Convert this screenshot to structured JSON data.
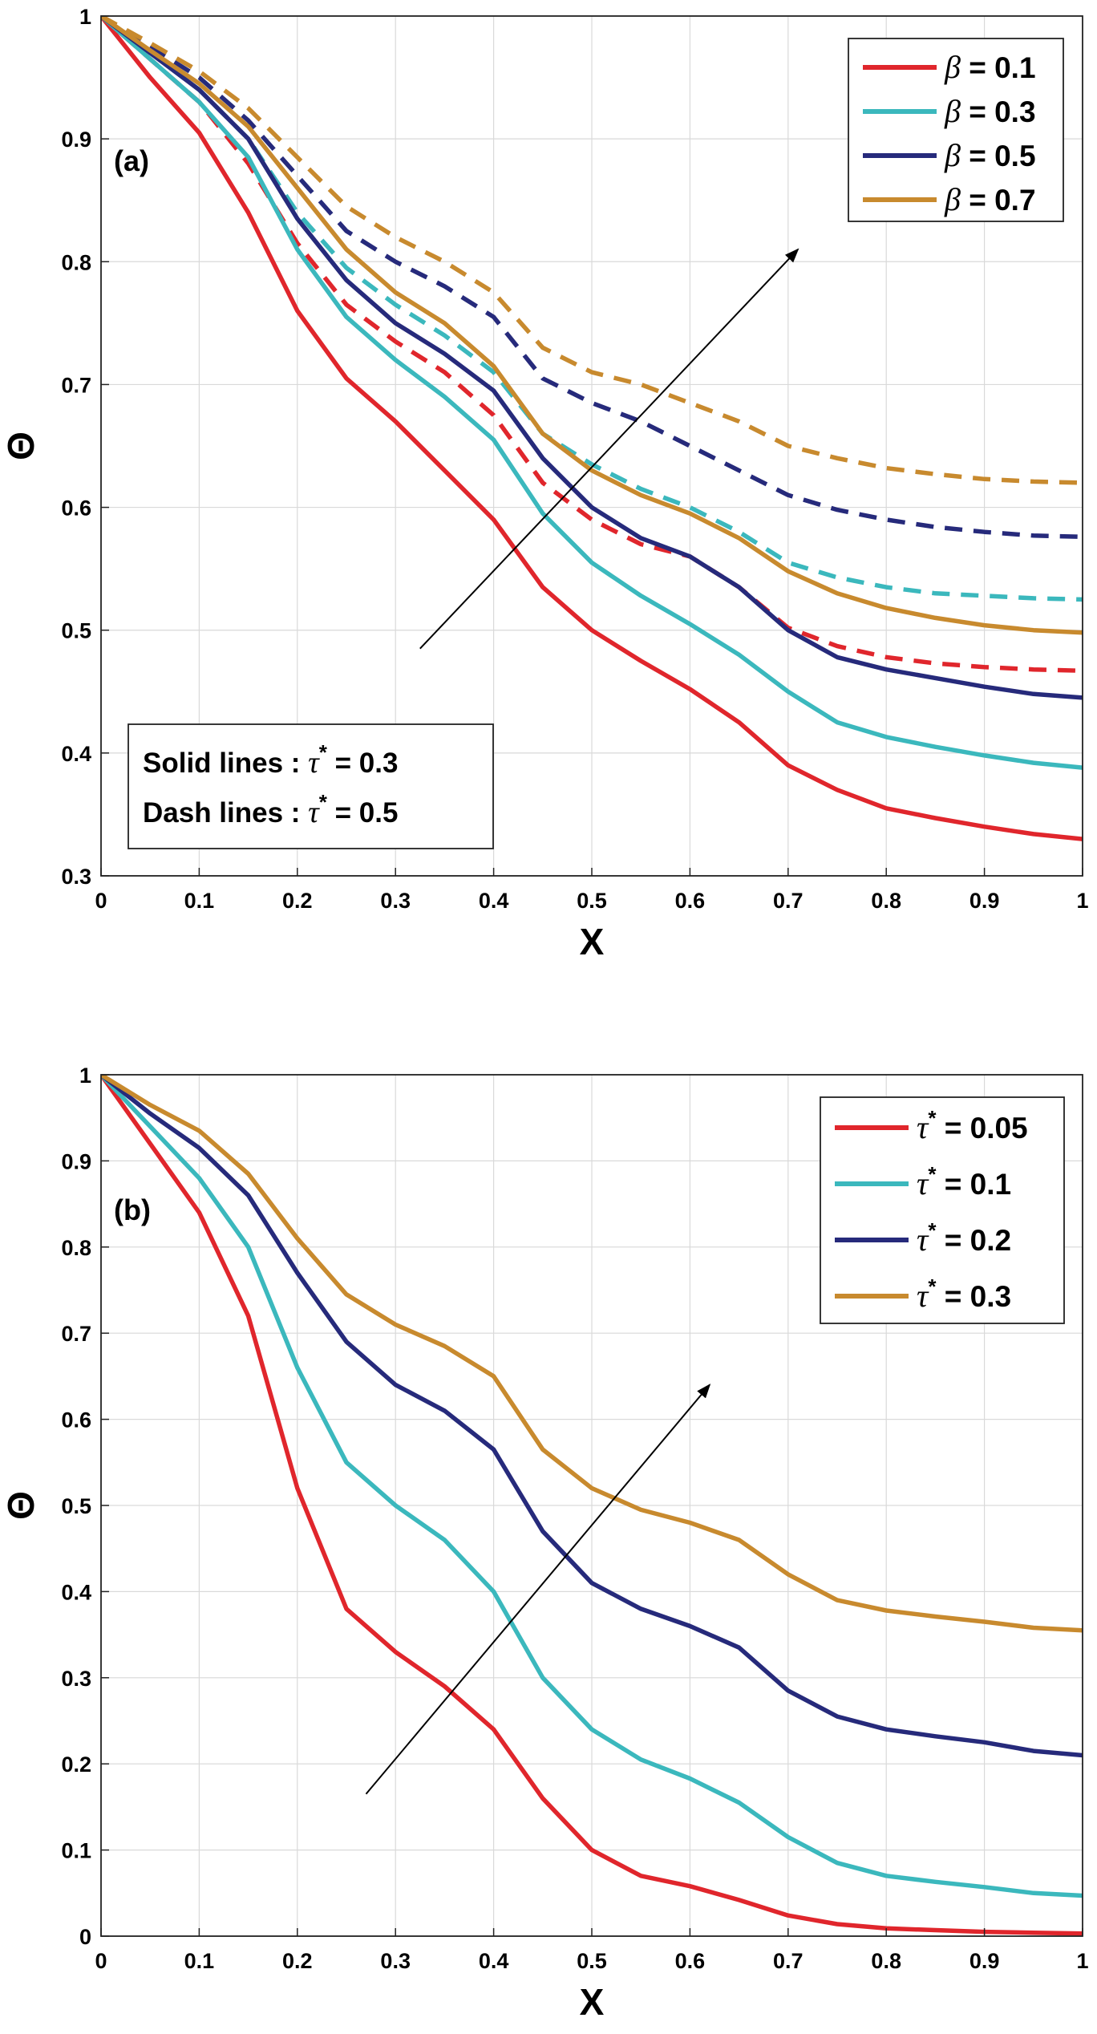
{
  "chart_data": [
    {
      "type": "line",
      "panel_label": "(a)",
      "xlabel": "X",
      "ylabel": "Θ",
      "xlim": [
        0,
        1
      ],
      "ylim": [
        0.3,
        1
      ],
      "xticks": [
        "0",
        "0.1",
        "0.2",
        "0.3",
        "0.4",
        "0.5",
        "0.6",
        "0.7",
        "0.8",
        "0.9",
        "1"
      ],
      "yticks": [
        "0.3",
        "0.4",
        "0.5",
        "0.6",
        "0.7",
        "0.8",
        "0.9",
        "1"
      ],
      "grid": true,
      "legend_position": "top-right",
      "legend": [
        {
          "symbol": "β",
          "label": " = 0.1",
          "color": "#e0262c"
        },
        {
          "symbol": "β",
          "label": " = 0.3",
          "color": "#3bb8bd"
        },
        {
          "symbol": "β",
          "label": " = 0.5",
          "color": "#262a7b"
        },
        {
          "symbol": "β",
          "label": " = 0.7",
          "color": "#c88a2e"
        }
      ],
      "note": [
        {
          "text": "Solid lines : ",
          "symbol": "τ",
          "sup": "*",
          "value": " = 0.3"
        },
        {
          "text": "Dash lines : ",
          "symbol": "τ",
          "sup": "*",
          "value": " = 0.5"
        }
      ],
      "arrow": {
        "from": [
          0.325,
          0.485
        ],
        "to": [
          0.71,
          0.81
        ]
      },
      "x": [
        0,
        0.05,
        0.1,
        0.15,
        0.2,
        0.25,
        0.3,
        0.35,
        0.4,
        0.45,
        0.5,
        0.55,
        0.6,
        0.65,
        0.7,
        0.75,
        0.8,
        0.85,
        0.9,
        0.95,
        1.0
      ],
      "series": [
        {
          "name": "β = 0.1, τ* = 0.3",
          "color": "#e0262c",
          "dash": false,
          "values": [
            1.0,
            0.95,
            0.905,
            0.84,
            0.76,
            0.705,
            0.67,
            0.63,
            0.59,
            0.535,
            0.5,
            0.475,
            0.452,
            0.425,
            0.39,
            0.37,
            0.355,
            0.347,
            0.34,
            0.334,
            0.33
          ]
        },
        {
          "name": "β = 0.3, τ* = 0.3",
          "color": "#3bb8bd",
          "dash": false,
          "values": [
            1.0,
            0.965,
            0.93,
            0.885,
            0.81,
            0.755,
            0.72,
            0.69,
            0.655,
            0.595,
            0.555,
            0.528,
            0.505,
            0.48,
            0.45,
            0.425,
            0.413,
            0.405,
            0.398,
            0.392,
            0.388
          ]
        },
        {
          "name": "β = 0.5, τ* = 0.3",
          "color": "#262a7b",
          "dash": false,
          "values": [
            1.0,
            0.97,
            0.94,
            0.9,
            0.835,
            0.785,
            0.75,
            0.725,
            0.695,
            0.64,
            0.6,
            0.575,
            0.56,
            0.535,
            0.5,
            0.478,
            0.468,
            0.461,
            0.454,
            0.448,
            0.445
          ]
        },
        {
          "name": "β = 0.7, τ* = 0.3",
          "color": "#c88a2e",
          "dash": false,
          "values": [
            1.0,
            0.972,
            0.945,
            0.91,
            0.86,
            0.81,
            0.775,
            0.75,
            0.715,
            0.66,
            0.63,
            0.61,
            0.595,
            0.575,
            0.548,
            0.53,
            0.518,
            0.51,
            0.504,
            0.5,
            0.498
          ]
        },
        {
          "name": "β = 0.1, τ* = 0.5",
          "color": "#e0262c",
          "dash": true,
          "values": [
            1.0,
            0.965,
            0.93,
            0.88,
            0.815,
            0.765,
            0.735,
            0.71,
            0.675,
            0.62,
            0.59,
            0.57,
            0.56,
            0.535,
            0.502,
            0.487,
            0.478,
            0.473,
            0.47,
            0.468,
            0.467
          ]
        },
        {
          "name": "β = 0.3, τ* = 0.5",
          "color": "#3bb8bd",
          "dash": true,
          "values": [
            1.0,
            0.97,
            0.94,
            0.9,
            0.84,
            0.795,
            0.765,
            0.74,
            0.71,
            0.66,
            0.635,
            0.615,
            0.6,
            0.58,
            0.555,
            0.543,
            0.535,
            0.53,
            0.528,
            0.526,
            0.525
          ]
        },
        {
          "name": "β = 0.5, τ* = 0.5",
          "color": "#262a7b",
          "dash": true,
          "values": [
            1.0,
            0.975,
            0.95,
            0.915,
            0.87,
            0.825,
            0.8,
            0.78,
            0.755,
            0.705,
            0.685,
            0.67,
            0.65,
            0.63,
            0.61,
            0.598,
            0.59,
            0.584,
            0.58,
            0.577,
            0.576
          ]
        },
        {
          "name": "β = 0.7, τ* = 0.5",
          "color": "#c88a2e",
          "dash": true,
          "values": [
            1.0,
            0.978,
            0.955,
            0.925,
            0.885,
            0.845,
            0.82,
            0.8,
            0.775,
            0.73,
            0.71,
            0.7,
            0.685,
            0.67,
            0.65,
            0.64,
            0.632,
            0.627,
            0.623,
            0.621,
            0.62
          ]
        }
      ]
    },
    {
      "type": "line",
      "panel_label": "(b)",
      "xlabel": "X",
      "ylabel": "Θ",
      "xlim": [
        0,
        1
      ],
      "ylim": [
        0,
        1
      ],
      "xticks": [
        "0",
        "0.1",
        "0.2",
        "0.3",
        "0.4",
        "0.5",
        "0.6",
        "0.7",
        "0.8",
        "0.9",
        "1"
      ],
      "yticks": [
        "0",
        "0.1",
        "0.2",
        "0.3",
        "0.4",
        "0.5",
        "0.6",
        "0.7",
        "0.8",
        "0.9",
        "1"
      ],
      "grid": true,
      "legend_position": "top-right",
      "legend": [
        {
          "symbol": "τ",
          "sup": "*",
          "label": " = 0.05",
          "color": "#e0262c"
        },
        {
          "symbol": "τ",
          "sup": "*",
          "label": " = 0.1",
          "color": "#3bb8bd"
        },
        {
          "symbol": "τ",
          "sup": "*",
          "label": " = 0.2",
          "color": "#262a7b"
        },
        {
          "symbol": "τ",
          "sup": "*",
          "label": " = 0.3",
          "color": "#c88a2e"
        }
      ],
      "arrow": {
        "from": [
          0.27,
          0.165
        ],
        "to": [
          0.62,
          0.64
        ]
      },
      "x": [
        0,
        0.05,
        0.1,
        0.15,
        0.2,
        0.25,
        0.3,
        0.35,
        0.4,
        0.45,
        0.5,
        0.55,
        0.6,
        0.65,
        0.7,
        0.75,
        0.8,
        0.85,
        0.9,
        0.95,
        1.0
      ],
      "series": [
        {
          "name": "τ* = 0.05",
          "color": "#e0262c",
          "dash": false,
          "values": [
            1.0,
            0.92,
            0.84,
            0.72,
            0.52,
            0.38,
            0.33,
            0.29,
            0.24,
            0.16,
            0.1,
            0.07,
            0.058,
            0.042,
            0.024,
            0.014,
            0.009,
            0.007,
            0.005,
            0.004,
            0.003
          ]
        },
        {
          "name": "τ* = 0.1",
          "color": "#3bb8bd",
          "dash": false,
          "values": [
            1.0,
            0.94,
            0.88,
            0.8,
            0.66,
            0.55,
            0.5,
            0.46,
            0.4,
            0.3,
            0.24,
            0.205,
            0.183,
            0.155,
            0.115,
            0.085,
            0.07,
            0.063,
            0.057,
            0.05,
            0.047
          ]
        },
        {
          "name": "τ* = 0.2",
          "color": "#262a7b",
          "dash": false,
          "values": [
            1.0,
            0.955,
            0.915,
            0.86,
            0.77,
            0.69,
            0.64,
            0.61,
            0.565,
            0.47,
            0.41,
            0.38,
            0.36,
            0.335,
            0.285,
            0.255,
            0.24,
            0.232,
            0.225,
            0.215,
            0.21
          ]
        },
        {
          "name": "τ* = 0.3",
          "color": "#c88a2e",
          "dash": false,
          "values": [
            1.0,
            0.965,
            0.935,
            0.885,
            0.81,
            0.745,
            0.71,
            0.685,
            0.65,
            0.565,
            0.52,
            0.495,
            0.48,
            0.46,
            0.42,
            0.39,
            0.378,
            0.371,
            0.365,
            0.358,
            0.355
          ]
        }
      ]
    }
  ]
}
